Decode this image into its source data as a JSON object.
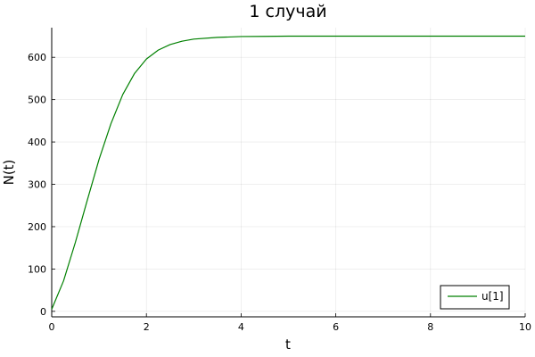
{
  "chart_data": {
    "type": "line",
    "title": "1 случай",
    "xlabel": "t",
    "ylabel": "N(t)",
    "xlim": [
      0,
      10
    ],
    "ylim": [
      -13,
      670
    ],
    "xticks": [
      0,
      2,
      4,
      6,
      8,
      10
    ],
    "xtick_labels": [
      "0",
      "2",
      "4",
      "6",
      "8",
      "10"
    ],
    "yticks": [
      0,
      100,
      200,
      300,
      400,
      500,
      600
    ],
    "ytick_labels": [
      "0",
      "100",
      "200",
      "300",
      "400",
      "500",
      "600"
    ],
    "grid": true,
    "legend_position": "bottom-right",
    "series": [
      {
        "name": "u[1]",
        "color": "#008000",
        "x": [
          0,
          0.25,
          0.5,
          0.75,
          1.0,
          1.25,
          1.5,
          1.75,
          2.0,
          2.25,
          2.5,
          2.75,
          3.0,
          3.5,
          4.0,
          4.5,
          5.0,
          6.0,
          7.0,
          8.0,
          9.0,
          10.0
        ],
        "y": [
          5,
          72,
          163,
          262,
          359,
          443,
          512,
          562,
          596,
          617,
          630,
          638,
          643,
          647,
          649,
          649.5,
          650,
          650,
          650,
          650,
          650,
          650
        ]
      }
    ]
  }
}
